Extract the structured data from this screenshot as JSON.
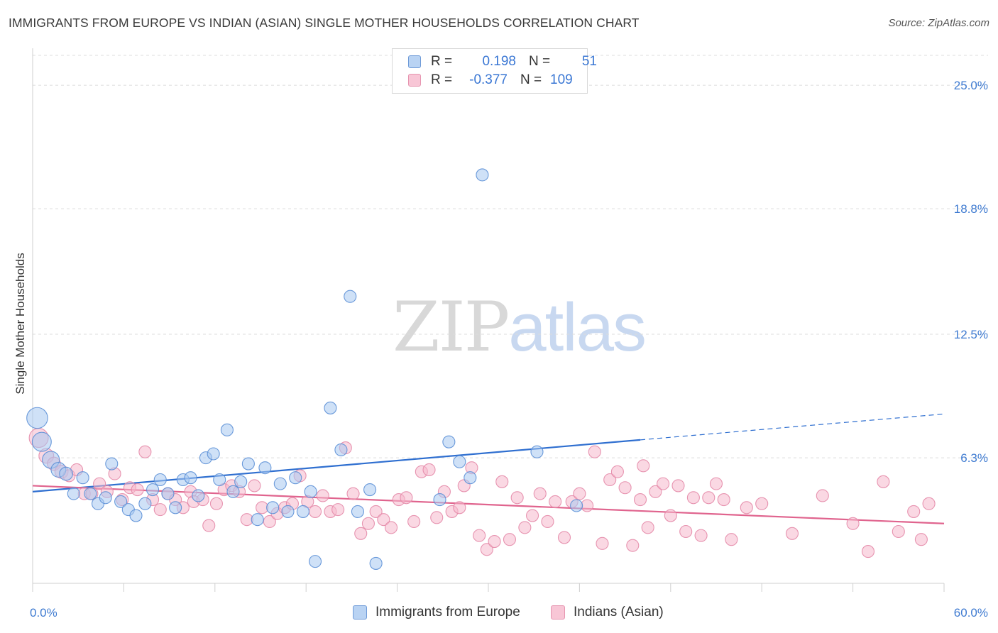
{
  "header": {
    "title": "IMMIGRANTS FROM EUROPE VS INDIAN (ASIAN) SINGLE MOTHER HOUSEHOLDS CORRELATION CHART",
    "source": "Source: ZipAtlas.com"
  },
  "watermark": {
    "zip": "ZIP",
    "atlas": "atlas"
  },
  "legend": {
    "rows": [
      {
        "r_label": "R =",
        "r_value": "0.198",
        "n_label": "N =",
        "n_value": "51"
      },
      {
        "r_label": "R =",
        "r_value": "-0.377",
        "n_label": "N =",
        "n_value": "109"
      }
    ]
  },
  "bottom_legend": {
    "series1": "Immigrants from Europe",
    "series2": "Indians (Asian)"
  },
  "colors": {
    "blue_fill": "#a8c8f0",
    "blue_stroke": "#5b8fd6",
    "blue_line": "#2f6fd0",
    "pink_fill": "#f5b8cc",
    "pink_stroke": "#e48aa8",
    "pink_line": "#e0648e",
    "grid": "#dcdcdc",
    "tick_text": "#3f7bd1"
  },
  "chart_data": {
    "type": "scatter",
    "title": "IMMIGRANTS FROM EUROPE VS INDIAN (ASIAN) SINGLE MOTHER HOUSEHOLDS CORRELATION CHART",
    "xlabel": "",
    "ylabel": "Single Mother Households",
    "xlim": [
      0,
      60
    ],
    "ylim": [
      0,
      26.5
    ],
    "x_tick_labels": [
      "0.0%",
      "60.0%"
    ],
    "y_ticks": [
      6.3,
      12.5,
      18.8,
      25.0
    ],
    "y_tick_labels": [
      "6.3%",
      "12.5%",
      "18.8%",
      "25.0%"
    ],
    "grid": "horizontal dashed",
    "series": [
      {
        "name": "Immigrants from Europe",
        "color": "#a8c8f0",
        "trend": {
          "x0": 0,
          "y0": 4.6,
          "x1": 40,
          "y1": 7.2,
          "dashed_to_x": 60,
          "dashed_y": 8.5
        },
        "points": [
          {
            "x": 0.3,
            "y": 8.3,
            "s": 3
          },
          {
            "x": 0.6,
            "y": 7.1,
            "s": 2.5
          },
          {
            "x": 1.2,
            "y": 6.2,
            "s": 2
          },
          {
            "x": 1.7,
            "y": 5.7,
            "s": 1.5
          },
          {
            "x": 2.2,
            "y": 5.5,
            "s": 1.2
          },
          {
            "x": 2.7,
            "y": 4.5,
            "s": 1
          },
          {
            "x": 3.3,
            "y": 5.3,
            "s": 1
          },
          {
            "x": 3.8,
            "y": 4.5,
            "s": 1
          },
          {
            "x": 4.3,
            "y": 4.0,
            "s": 1
          },
          {
            "x": 4.8,
            "y": 4.3,
            "s": 1
          },
          {
            "x": 5.2,
            "y": 6.0,
            "s": 1
          },
          {
            "x": 5.8,
            "y": 4.1,
            "s": 1
          },
          {
            "x": 6.3,
            "y": 3.7,
            "s": 1
          },
          {
            "x": 6.8,
            "y": 3.4,
            "s": 1
          },
          {
            "x": 7.4,
            "y": 4.0,
            "s": 1
          },
          {
            "x": 7.9,
            "y": 4.7,
            "s": 1
          },
          {
            "x": 8.4,
            "y": 5.2,
            "s": 1
          },
          {
            "x": 8.9,
            "y": 4.5,
            "s": 1
          },
          {
            "x": 9.4,
            "y": 3.8,
            "s": 1
          },
          {
            "x": 9.9,
            "y": 5.2,
            "s": 1
          },
          {
            "x": 10.4,
            "y": 5.3,
            "s": 1
          },
          {
            "x": 10.9,
            "y": 4.4,
            "s": 1
          },
          {
            "x": 11.4,
            "y": 6.3,
            "s": 1
          },
          {
            "x": 11.9,
            "y": 6.5,
            "s": 1
          },
          {
            "x": 12.3,
            "y": 5.2,
            "s": 1
          },
          {
            "x": 12.8,
            "y": 7.7,
            "s": 1
          },
          {
            "x": 13.2,
            "y": 4.6,
            "s": 1
          },
          {
            "x": 13.7,
            "y": 5.1,
            "s": 1
          },
          {
            "x": 14.2,
            "y": 6.0,
            "s": 1
          },
          {
            "x": 14.8,
            "y": 3.2,
            "s": 1
          },
          {
            "x": 15.3,
            "y": 5.8,
            "s": 1
          },
          {
            "x": 15.8,
            "y": 3.8,
            "s": 1
          },
          {
            "x": 16.3,
            "y": 5.0,
            "s": 1
          },
          {
            "x": 16.8,
            "y": 3.6,
            "s": 1
          },
          {
            "x": 17.3,
            "y": 5.3,
            "s": 1
          },
          {
            "x": 17.8,
            "y": 3.6,
            "s": 1
          },
          {
            "x": 18.3,
            "y": 4.6,
            "s": 1
          },
          {
            "x": 18.6,
            "y": 1.1,
            "s": 1
          },
          {
            "x": 19.6,
            "y": 8.8,
            "s": 1
          },
          {
            "x": 20.3,
            "y": 6.7,
            "s": 1
          },
          {
            "x": 20.9,
            "y": 14.4,
            "s": 1
          },
          {
            "x": 21.4,
            "y": 3.6,
            "s": 1
          },
          {
            "x": 22.2,
            "y": 4.7,
            "s": 1
          },
          {
            "x": 22.6,
            "y": 1.0,
            "s": 1
          },
          {
            "x": 26.8,
            "y": 4.2,
            "s": 1
          },
          {
            "x": 27.4,
            "y": 7.1,
            "s": 1
          },
          {
            "x": 28.1,
            "y": 6.1,
            "s": 1
          },
          {
            "x": 28.8,
            "y": 5.3,
            "s": 1
          },
          {
            "x": 29.6,
            "y": 20.5,
            "s": 1
          },
          {
            "x": 33.2,
            "y": 6.6,
            "s": 1
          },
          {
            "x": 35.8,
            "y": 3.9,
            "s": 1
          }
        ]
      },
      {
        "name": "Indians (Asian)",
        "color": "#f5b8cc",
        "trend": {
          "x0": 0,
          "y0": 4.9,
          "x1": 60,
          "y1": 3.0
        },
        "points": [
          {
            "x": 0.4,
            "y": 7.3,
            "s": 2.5
          },
          {
            "x": 0.9,
            "y": 6.4,
            "s": 1.5
          },
          {
            "x": 1.4,
            "y": 6.0,
            "s": 1.2
          },
          {
            "x": 1.9,
            "y": 5.6,
            "s": 1.2
          },
          {
            "x": 2.4,
            "y": 5.4,
            "s": 1
          },
          {
            "x": 2.9,
            "y": 5.7,
            "s": 1
          },
          {
            "x": 3.4,
            "y": 4.5,
            "s": 1
          },
          {
            "x": 3.9,
            "y": 4.5,
            "s": 1
          },
          {
            "x": 4.4,
            "y": 5.0,
            "s": 1
          },
          {
            "x": 4.9,
            "y": 4.6,
            "s": 1
          },
          {
            "x": 5.4,
            "y": 5.5,
            "s": 1
          },
          {
            "x": 5.9,
            "y": 4.2,
            "s": 1
          },
          {
            "x": 6.4,
            "y": 4.8,
            "s": 1
          },
          {
            "x": 6.9,
            "y": 4.7,
            "s": 1
          },
          {
            "x": 7.4,
            "y": 6.6,
            "s": 1
          },
          {
            "x": 7.9,
            "y": 4.2,
            "s": 1
          },
          {
            "x": 8.4,
            "y": 3.7,
            "s": 1
          },
          {
            "x": 8.9,
            "y": 4.5,
            "s": 1
          },
          {
            "x": 9.4,
            "y": 4.2,
            "s": 1
          },
          {
            "x": 9.9,
            "y": 3.8,
            "s": 1
          },
          {
            "x": 10.4,
            "y": 4.6,
            "s": 1
          },
          {
            "x": 10.6,
            "y": 4.1,
            "s": 1
          },
          {
            "x": 11.2,
            "y": 4.2,
            "s": 1
          },
          {
            "x": 11.6,
            "y": 2.9,
            "s": 1
          },
          {
            "x": 12.1,
            "y": 4.0,
            "s": 1
          },
          {
            "x": 12.6,
            "y": 4.7,
            "s": 1
          },
          {
            "x": 13.1,
            "y": 4.9,
            "s": 1
          },
          {
            "x": 13.6,
            "y": 4.6,
            "s": 1
          },
          {
            "x": 14.1,
            "y": 3.2,
            "s": 1
          },
          {
            "x": 14.6,
            "y": 4.9,
            "s": 1
          },
          {
            "x": 15.1,
            "y": 3.8,
            "s": 1
          },
          {
            "x": 15.6,
            "y": 3.1,
            "s": 1
          },
          {
            "x": 16.1,
            "y": 3.5,
            "s": 1
          },
          {
            "x": 16.6,
            "y": 3.8,
            "s": 1
          },
          {
            "x": 17.1,
            "y": 4.0,
            "s": 1
          },
          {
            "x": 17.6,
            "y": 5.4,
            "s": 1
          },
          {
            "x": 18.1,
            "y": 4.1,
            "s": 1
          },
          {
            "x": 18.6,
            "y": 3.6,
            "s": 1
          },
          {
            "x": 19.1,
            "y": 4.4,
            "s": 1
          },
          {
            "x": 19.6,
            "y": 3.6,
            "s": 1
          },
          {
            "x": 20.1,
            "y": 3.7,
            "s": 1
          },
          {
            "x": 20.6,
            "y": 6.8,
            "s": 1
          },
          {
            "x": 21.1,
            "y": 4.5,
            "s": 1
          },
          {
            "x": 21.6,
            "y": 2.5,
            "s": 1
          },
          {
            "x": 22.1,
            "y": 3.0,
            "s": 1
          },
          {
            "x": 22.6,
            "y": 3.6,
            "s": 1
          },
          {
            "x": 23.1,
            "y": 3.2,
            "s": 1
          },
          {
            "x": 23.6,
            "y": 2.8,
            "s": 1
          },
          {
            "x": 24.1,
            "y": 4.2,
            "s": 1
          },
          {
            "x": 24.6,
            "y": 4.3,
            "s": 1
          },
          {
            "x": 25.1,
            "y": 3.1,
            "s": 1
          },
          {
            "x": 25.6,
            "y": 5.6,
            "s": 1
          },
          {
            "x": 26.1,
            "y": 5.7,
            "s": 1
          },
          {
            "x": 26.6,
            "y": 3.3,
            "s": 1
          },
          {
            "x": 27.1,
            "y": 4.6,
            "s": 1
          },
          {
            "x": 27.6,
            "y": 3.6,
            "s": 1
          },
          {
            "x": 28.1,
            "y": 3.8,
            "s": 1
          },
          {
            "x": 28.4,
            "y": 4.9,
            "s": 1
          },
          {
            "x": 28.9,
            "y": 5.8,
            "s": 1
          },
          {
            "x": 29.4,
            "y": 2.4,
            "s": 1
          },
          {
            "x": 29.9,
            "y": 1.7,
            "s": 1
          },
          {
            "x": 30.4,
            "y": 2.1,
            "s": 1
          },
          {
            "x": 30.9,
            "y": 5.1,
            "s": 1
          },
          {
            "x": 31.4,
            "y": 2.2,
            "s": 1
          },
          {
            "x": 31.9,
            "y": 4.3,
            "s": 1
          },
          {
            "x": 32.4,
            "y": 2.8,
            "s": 1
          },
          {
            "x": 32.9,
            "y": 3.4,
            "s": 1
          },
          {
            "x": 33.4,
            "y": 4.5,
            "s": 1
          },
          {
            "x": 33.9,
            "y": 3.1,
            "s": 1
          },
          {
            "x": 34.4,
            "y": 4.1,
            "s": 1
          },
          {
            "x": 35.0,
            "y": 2.3,
            "s": 1
          },
          {
            "x": 35.5,
            "y": 4.1,
            "s": 1
          },
          {
            "x": 36.0,
            "y": 4.5,
            "s": 1
          },
          {
            "x": 36.5,
            "y": 3.9,
            "s": 1
          },
          {
            "x": 37.0,
            "y": 6.6,
            "s": 1
          },
          {
            "x": 37.5,
            "y": 2.0,
            "s": 1
          },
          {
            "x": 38.0,
            "y": 5.2,
            "s": 1
          },
          {
            "x": 38.5,
            "y": 5.6,
            "s": 1
          },
          {
            "x": 39.0,
            "y": 4.8,
            "s": 1
          },
          {
            "x": 39.5,
            "y": 1.9,
            "s": 1
          },
          {
            "x": 40.0,
            "y": 4.2,
            "s": 1
          },
          {
            "x": 40.5,
            "y": 2.8,
            "s": 1
          },
          {
            "x": 41.0,
            "y": 4.6,
            "s": 1
          },
          {
            "x": 41.5,
            "y": 5.0,
            "s": 1
          },
          {
            "x": 42.0,
            "y": 3.4,
            "s": 1
          },
          {
            "x": 42.5,
            "y": 4.9,
            "s": 1
          },
          {
            "x": 43.0,
            "y": 2.6,
            "s": 1
          },
          {
            "x": 43.5,
            "y": 4.3,
            "s": 1
          },
          {
            "x": 44.0,
            "y": 2.4,
            "s": 1
          },
          {
            "x": 44.5,
            "y": 4.3,
            "s": 1
          },
          {
            "x": 45.0,
            "y": 5.0,
            "s": 1
          },
          {
            "x": 46.0,
            "y": 2.2,
            "s": 1
          },
          {
            "x": 47.0,
            "y": 3.8,
            "s": 1
          },
          {
            "x": 48.0,
            "y": 4.0,
            "s": 1
          },
          {
            "x": 50.0,
            "y": 2.5,
            "s": 1
          },
          {
            "x": 52.0,
            "y": 4.4,
            "s": 1
          },
          {
            "x": 54.0,
            "y": 3.0,
            "s": 1
          },
          {
            "x": 55.0,
            "y": 1.6,
            "s": 1
          },
          {
            "x": 56.0,
            "y": 5.1,
            "s": 1
          },
          {
            "x": 57.0,
            "y": 2.6,
            "s": 1
          },
          {
            "x": 58.0,
            "y": 3.6,
            "s": 1
          },
          {
            "x": 58.5,
            "y": 2.2,
            "s": 1
          },
          {
            "x": 59.0,
            "y": 4.0,
            "s": 1
          },
          {
            "x": 40.2,
            "y": 5.9,
            "s": 1
          },
          {
            "x": 45.5,
            "y": 4.2,
            "s": 1
          }
        ]
      }
    ]
  }
}
